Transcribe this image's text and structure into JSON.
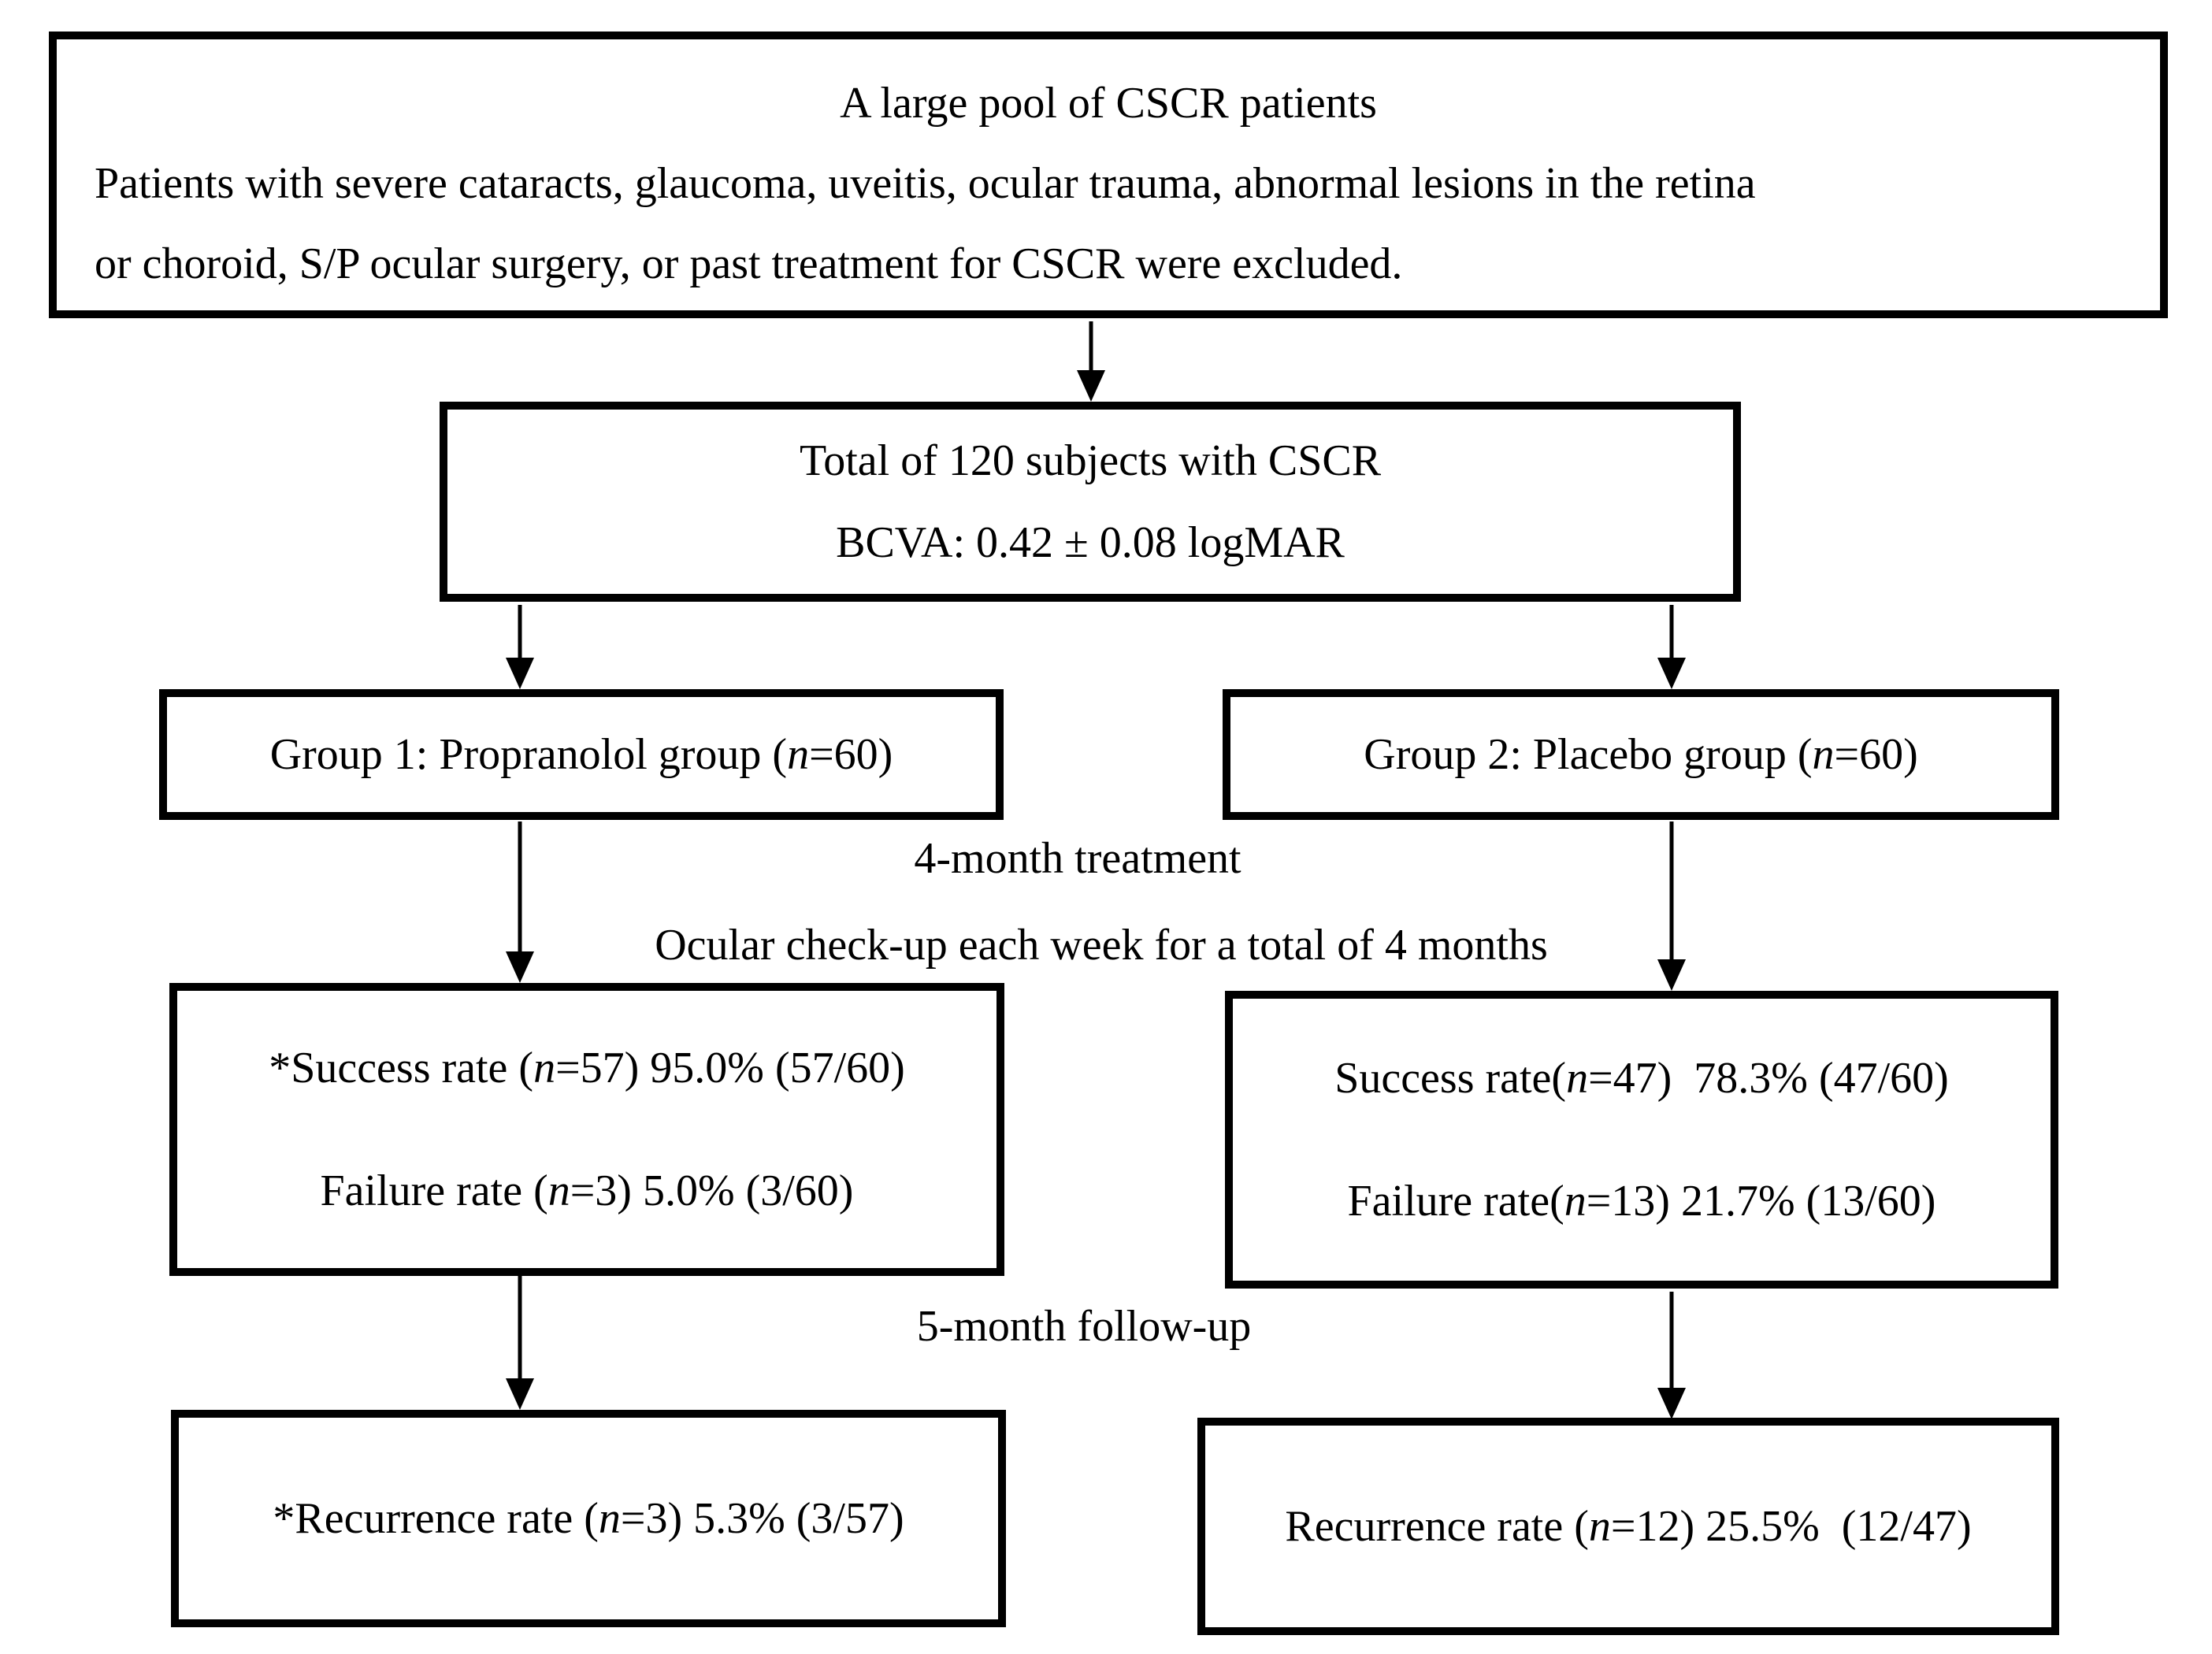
{
  "page": {
    "background": "#ffffff",
    "ink": "#000000"
  },
  "boxes": {
    "pool": {
      "line1": "A large pool of CSCR patients",
      "line2": "Patients with severe cataracts, glaucoma, uveitis, ocular trauma, abnormal lesions in the retina",
      "line3": "or choroid, S/P ocular surgery, or past treatment for CSCR were excluded."
    },
    "total": {
      "line1": "Total of 120 subjects with CSCR",
      "line2": "BCVA: 0.42 ± 0.08 logMAR"
    },
    "group1": {
      "pre": "Group 1: Propranolol group (",
      "n": "n",
      "post": "=60)"
    },
    "group2": {
      "pre": "Group 2: Placebo group (",
      "n": "n",
      "post": "=60)"
    },
    "outcome1": {
      "success": {
        "pre": "*Success rate (",
        "n": "n",
        "post": "=57) 95.0% (57/60)"
      },
      "failure": {
        "pre": "Failure rate (",
        "n": "n",
        "post": "=3) 5.0% (3/60)"
      }
    },
    "outcome2": {
      "success": {
        "pre": "Success rate(",
        "n": "n",
        "post": "=47)  78.3% (47/60)"
      },
      "failure": {
        "pre": "Failure rate(",
        "n": "n",
        "post": "=13) 21.7% (13/60)"
      }
    },
    "recurrence1": {
      "pre": "*Recurrence rate (",
      "n": "n",
      "post": "=3) 5.3% (3/57)"
    },
    "recurrence2": {
      "pre": "Recurrence rate (",
      "n": "n",
      "post": "=12) 25.5%  (12/47)"
    }
  },
  "labels": {
    "treatment": "4-month treatment",
    "checkup": "Ocular check-up each week for a total of 4 months",
    "followup": "5-month follow-up"
  }
}
